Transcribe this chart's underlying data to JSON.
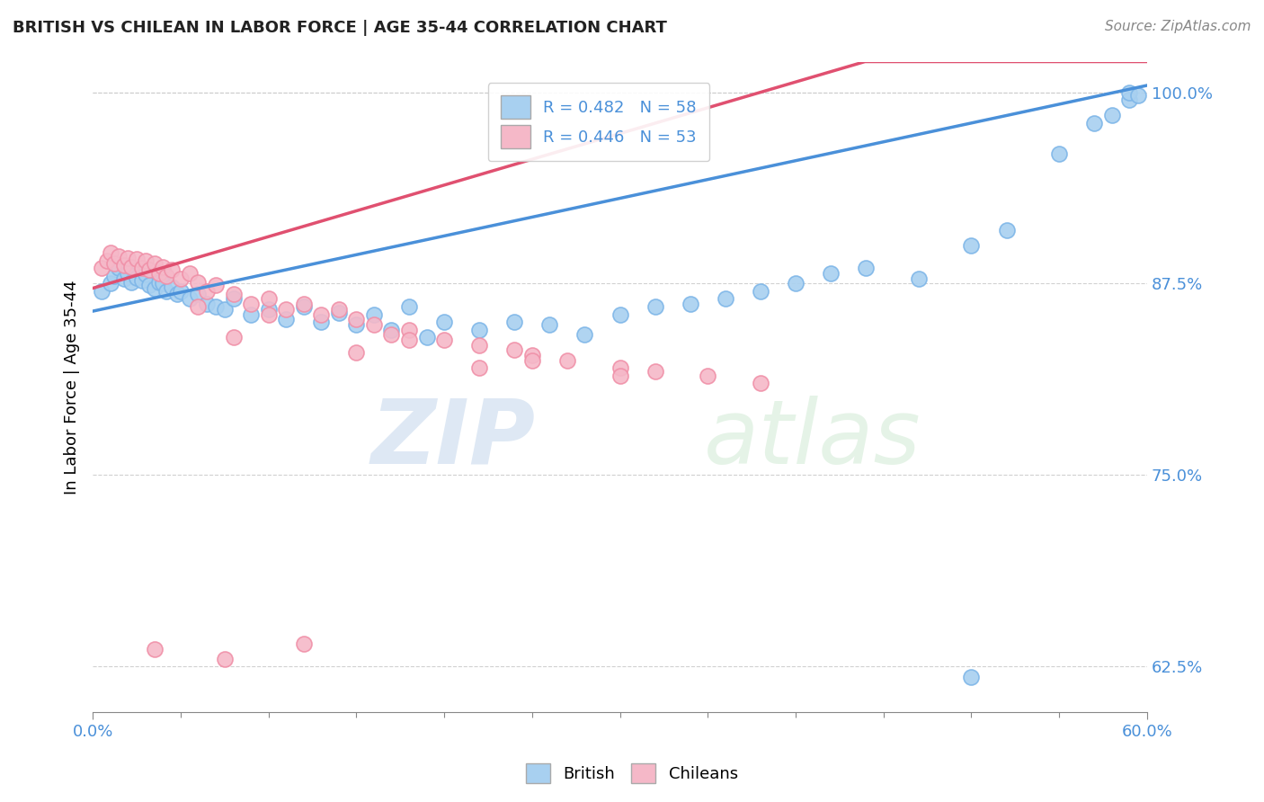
{
  "title": "BRITISH VS CHILEAN IN LABOR FORCE | AGE 35-44 CORRELATION CHART",
  "source_text": "Source: ZipAtlas.com",
  "ylabel": "In Labor Force | Age 35-44",
  "xlim": [
    0.0,
    0.6
  ],
  "ylim": [
    0.595,
    1.02
  ],
  "ytick_values": [
    0.625,
    0.75,
    0.875,
    1.0
  ],
  "ytick_labels": [
    "62.5%",
    "75.0%",
    "87.5%",
    "100.0%"
  ],
  "xtick_values": [
    0.0,
    0.6
  ],
  "xtick_labels": [
    "0.0%",
    "60.0%"
  ],
  "british_R": 0.482,
  "british_N": 58,
  "chilean_R": 0.446,
  "chilean_N": 53,
  "british_color": "#a8d0f0",
  "chilean_color": "#f5b8c8",
  "british_edge_color": "#7eb6e8",
  "chilean_edge_color": "#f090a8",
  "british_line_color": "#4a90d9",
  "chilean_line_color": "#e05070",
  "legend_color_blue": "#a8d0f0",
  "legend_color_pink": "#f5b8c8",
  "tick_color": "#4a90d9",
  "watermark_zip": "ZIP",
  "watermark_atlas": "atlas",
  "british_x": [
    0.005,
    0.01,
    0.012,
    0.015,
    0.018,
    0.02,
    0.022,
    0.025,
    0.028,
    0.03,
    0.032,
    0.035,
    0.038,
    0.04,
    0.042,
    0.045,
    0.048,
    0.05,
    0.055,
    0.06,
    0.065,
    0.07,
    0.075,
    0.08,
    0.09,
    0.1,
    0.11,
    0.12,
    0.13,
    0.14,
    0.15,
    0.16,
    0.17,
    0.18,
    0.19,
    0.2,
    0.22,
    0.24,
    0.26,
    0.28,
    0.3,
    0.32,
    0.34,
    0.36,
    0.38,
    0.4,
    0.42,
    0.44,
    0.5,
    0.52,
    0.55,
    0.57,
    0.58,
    0.59,
    0.59,
    0.595,
    0.5,
    0.47
  ],
  "british_y": [
    0.87,
    0.875,
    0.88,
    0.885,
    0.878,
    0.882,
    0.876,
    0.879,
    0.877,
    0.881,
    0.874,
    0.872,
    0.876,
    0.875,
    0.87,
    0.873,
    0.868,
    0.87,
    0.865,
    0.868,
    0.862,
    0.86,
    0.858,
    0.865,
    0.855,
    0.858,
    0.852,
    0.86,
    0.85,
    0.856,
    0.848,
    0.855,
    0.845,
    0.86,
    0.84,
    0.85,
    0.845,
    0.85,
    0.848,
    0.842,
    0.855,
    0.86,
    0.862,
    0.865,
    0.87,
    0.875,
    0.882,
    0.885,
    0.9,
    0.91,
    0.96,
    0.98,
    0.985,
    0.995,
    1.0,
    0.998,
    0.618,
    0.878
  ],
  "chilean_x": [
    0.005,
    0.008,
    0.01,
    0.012,
    0.015,
    0.018,
    0.02,
    0.022,
    0.025,
    0.028,
    0.03,
    0.032,
    0.035,
    0.038,
    0.04,
    0.042,
    0.045,
    0.05,
    0.055,
    0.06,
    0.065,
    0.07,
    0.08,
    0.09,
    0.1,
    0.11,
    0.12,
    0.13,
    0.14,
    0.15,
    0.16,
    0.17,
    0.18,
    0.2,
    0.22,
    0.24,
    0.25,
    0.27,
    0.3,
    0.32,
    0.35,
    0.38,
    0.08,
    0.15,
    0.22,
    0.3,
    0.06,
    0.1,
    0.18,
    0.25,
    0.035,
    0.075,
    0.12
  ],
  "chilean_y": [
    0.885,
    0.89,
    0.895,
    0.888,
    0.893,
    0.887,
    0.892,
    0.886,
    0.891,
    0.885,
    0.89,
    0.884,
    0.888,
    0.882,
    0.886,
    0.88,
    0.884,
    0.878,
    0.882,
    0.876,
    0.87,
    0.874,
    0.868,
    0.862,
    0.865,
    0.858,
    0.862,
    0.855,
    0.858,
    0.852,
    0.848,
    0.842,
    0.845,
    0.838,
    0.835,
    0.832,
    0.828,
    0.825,
    0.82,
    0.818,
    0.815,
    0.81,
    0.84,
    0.83,
    0.82,
    0.815,
    0.86,
    0.855,
    0.838,
    0.825,
    0.636,
    0.63,
    0.64
  ]
}
